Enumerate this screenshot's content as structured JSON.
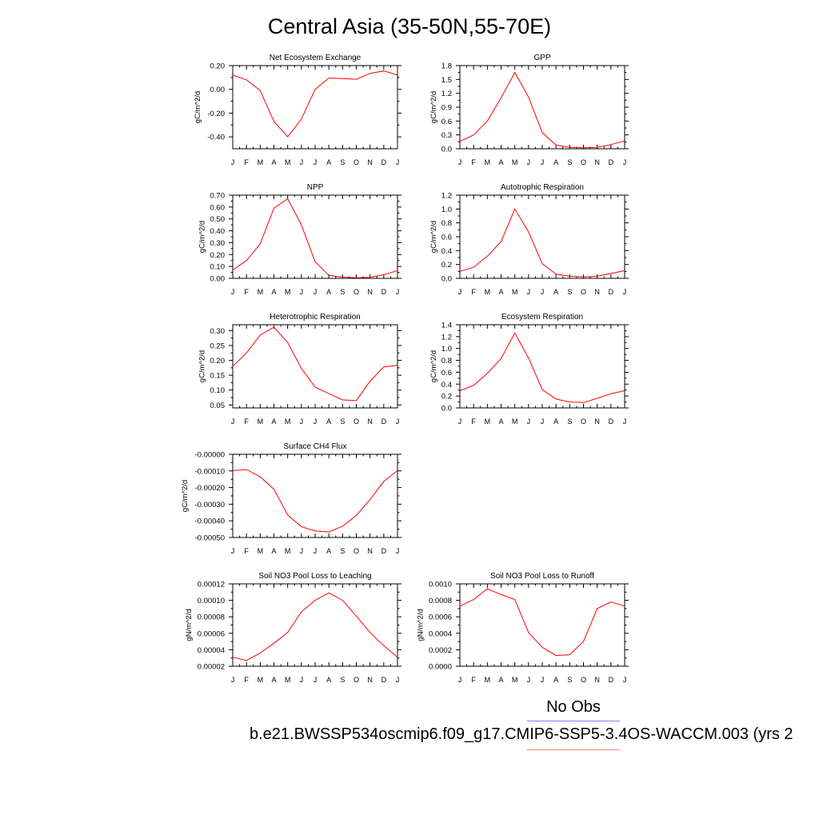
{
  "title": "Central Asia (35-50N,55-70E)",
  "footer": {
    "obs_label": "No Obs",
    "case_label": "b.e21.BWSSP534oscmip6.f09_g17.CMIP6-SSP5-3.4OS-WACCM.003 (yrs 2"
  },
  "colors": {
    "model_line": "#ff0000",
    "obs_line": "#8080ff",
    "case_line": "#ff8080"
  },
  "months": [
    "J",
    "F",
    "M",
    "A",
    "M",
    "J",
    "J",
    "A",
    "S",
    "O",
    "N",
    "D",
    "J"
  ],
  "chart_data": [
    {
      "type": "line",
      "title": "Net Ecosystem Exchange",
      "ylabel": "gC/m^2/d",
      "ylim": [
        -0.5,
        0.2
      ],
      "yticks": [
        -0.4,
        -0.2,
        0.0,
        0.2
      ],
      "ytick_labels": [
        "-0.40",
        "-0.20",
        "0.00",
        "0.20"
      ],
      "values": [
        0.12,
        0.08,
        -0.01,
        -0.27,
        -0.4,
        -0.25,
        0.0,
        0.095,
        0.09,
        0.085,
        0.135,
        0.155,
        0.12
      ]
    },
    {
      "type": "line",
      "title": "GPP",
      "ylabel": "gC/m^2/d",
      "ylim": [
        0.0,
        1.8
      ],
      "yticks": [
        0.0,
        0.3,
        0.6,
        0.9,
        1.2,
        1.5,
        1.8
      ],
      "ytick_labels": [
        "0.0",
        "0.3",
        "0.6",
        "0.9",
        "1.2",
        "1.5",
        "1.8"
      ],
      "values": [
        0.16,
        0.3,
        0.6,
        1.1,
        1.65,
        1.12,
        0.35,
        0.08,
        0.03,
        0.02,
        0.03,
        0.09,
        0.17
      ]
    },
    {
      "type": "line",
      "title": "NPP",
      "ylabel": "gC/m^2/d",
      "ylim": [
        0.0,
        0.7
      ],
      "yticks": [
        0.0,
        0.1,
        0.2,
        0.3,
        0.4,
        0.5,
        0.6,
        0.7
      ],
      "ytick_labels": [
        "0.00",
        "0.10",
        "0.20",
        "0.30",
        "0.40",
        "0.50",
        "0.60",
        "0.70"
      ],
      "values": [
        0.07,
        0.15,
        0.29,
        0.59,
        0.67,
        0.45,
        0.14,
        0.025,
        0.01,
        0.005,
        0.008,
        0.03,
        0.065
      ]
    },
    {
      "type": "line",
      "title": "Autotrophic Respiration",
      "ylabel": "gC/m^2/d",
      "ylim": [
        0.0,
        1.2
      ],
      "yticks": [
        0.0,
        0.2,
        0.4,
        0.6,
        0.8,
        1.0,
        1.2
      ],
      "ytick_labels": [
        "0.0",
        "0.2",
        "0.4",
        "0.6",
        "0.8",
        "1.0",
        "1.2"
      ],
      "values": [
        0.1,
        0.16,
        0.32,
        0.53,
        1.0,
        0.67,
        0.21,
        0.06,
        0.03,
        0.02,
        0.03,
        0.07,
        0.11
      ]
    },
    {
      "type": "line",
      "title": "Heterotrophic Respiration",
      "ylabel": "gC/m^2/d",
      "ylim": [
        0.04,
        0.32
      ],
      "yticks": [
        0.05,
        0.1,
        0.15,
        0.2,
        0.25,
        0.3
      ],
      "ytick_labels": [
        "0.05",
        "0.10",
        "0.15",
        "0.20",
        "0.25",
        "0.30"
      ],
      "values": [
        0.18,
        0.225,
        0.285,
        0.312,
        0.26,
        0.173,
        0.11,
        0.088,
        0.067,
        0.065,
        0.13,
        0.178,
        0.183
      ]
    },
    {
      "type": "line",
      "title": "Ecosystem Respiration",
      "ylabel": "gC/m^2/d",
      "ylim": [
        0.0,
        1.4
      ],
      "yticks": [
        0.0,
        0.2,
        0.4,
        0.6,
        0.8,
        1.0,
        1.2,
        1.4
      ],
      "ytick_labels": [
        "0.0",
        "0.2",
        "0.4",
        "0.6",
        "0.8",
        "1.0",
        "1.2",
        "1.4"
      ],
      "values": [
        0.29,
        0.38,
        0.58,
        0.83,
        1.26,
        0.84,
        0.31,
        0.15,
        0.1,
        0.09,
        0.16,
        0.24,
        0.29
      ]
    },
    {
      "type": "line",
      "title": "Surface CH4 Flux",
      "ylabel": "gC/m^2/d",
      "ylim": [
        -0.0005,
        0.0
      ],
      "yticks": [
        -0.0005,
        -0.0004,
        -0.0003,
        -0.0002,
        -0.0001,
        0.0
      ],
      "ytick_labels": [
        "-0.00050",
        "-0.00040",
        "-0.00030",
        "-0.00020",
        "-0.00010",
        "-0.00000"
      ],
      "values": [
        -9.8e-05,
        -9.2e-05,
        -0.000135,
        -0.00021,
        -0.000365,
        -0.000435,
        -0.00046,
        -0.000467,
        -0.000432,
        -0.000368,
        -0.000272,
        -0.000163,
        -9.8e-05
      ]
    },
    {
      "type": "line",
      "title": "Soil NO3 Pool Loss to Leaching",
      "ylabel": "gN/m^2/d",
      "ylim": [
        2e-05,
        0.00012
      ],
      "yticks": [
        2e-05,
        4e-05,
        6e-05,
        8e-05,
        0.0001,
        0.00012
      ],
      "ytick_labels": [
        "0.00002",
        "0.00004",
        "0.00006",
        "0.00008",
        "0.00010",
        "0.00012"
      ],
      "values": [
        3.1e-05,
        2.7e-05,
        3.6e-05,
        4.8e-05,
        6.1e-05,
        8.6e-05,
        0.0001,
        0.000109,
        0.0001,
        8.1e-05,
        6.1e-05,
        4.5e-05,
        3.1e-05
      ]
    },
    {
      "type": "line",
      "title": "Soil NO3 Pool Loss to Runoff",
      "ylabel": "gN/m^2/d",
      "ylim": [
        0.0,
        0.001
      ],
      "yticks": [
        0.0,
        0.0002,
        0.0004,
        0.0006,
        0.0008,
        0.001
      ],
      "ytick_labels": [
        "0.0000",
        "0.0002",
        "0.0004",
        "0.0006",
        "0.0008",
        "0.0010"
      ],
      "values": [
        0.00073,
        0.00081,
        0.00094,
        0.00087,
        0.00081,
        0.00041,
        0.00023,
        0.00013,
        0.00014,
        0.0003,
        0.0007,
        0.00078,
        0.00073
      ]
    }
  ]
}
